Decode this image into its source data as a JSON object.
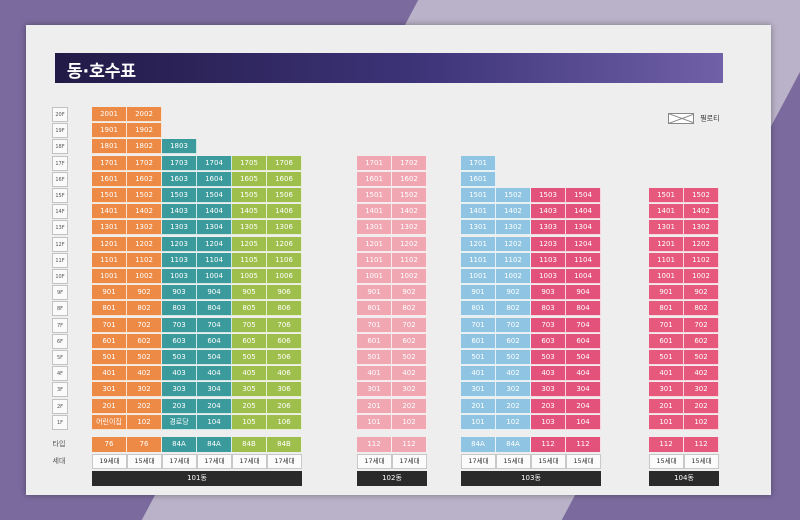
{
  "title": "동·호수표",
  "legend": "필로티",
  "floors": [
    "20F",
    "19F",
    "18F",
    "17F",
    "16F",
    "15F",
    "14F",
    "13F",
    "12F",
    "11F",
    "10F",
    "9F",
    "8F",
    "7F",
    "6F",
    "5F",
    "4F",
    "3F",
    "2F",
    "1F"
  ],
  "row_labels": {
    "type": "타입",
    "households": "세대"
  },
  "colors": {
    "orange": "#ec8a46",
    "teal": "#3b9a9c",
    "olive": "#9fbf4c",
    "pink": "#f0a7b2",
    "lightblue": "#8fc5e2",
    "magenta": "#e2527a",
    "rose": "#e7597c",
    "buildbar": "#2a2a2a"
  },
  "buildings": [
    {
      "name": "101동",
      "columns": [
        {
          "unit": "01",
          "top": 20,
          "first_floor_label": "어린이집",
          "type": "76",
          "count": "19세대",
          "color": "orange"
        },
        {
          "unit": "02",
          "top": 20,
          "type": "76",
          "count": "15세대",
          "color": "orange"
        },
        {
          "unit": "03",
          "top": 18,
          "first_floor_label": "경로당",
          "type": "84A",
          "count": "17세대",
          "color": "teal"
        },
        {
          "unit": "04",
          "top": 17,
          "type": "84A",
          "count": "17세대",
          "color": "teal"
        },
        {
          "unit": "05",
          "top": 17,
          "type": "84B",
          "count": "17세대",
          "color": "olive"
        },
        {
          "unit": "06",
          "top": 17,
          "type": "84B",
          "count": "17세대",
          "color": "olive"
        }
      ]
    },
    {
      "name": "102동",
      "columns": [
        {
          "unit": "01",
          "top": 17,
          "type": "112",
          "count": "17세대",
          "color": "pink"
        },
        {
          "unit": "02",
          "top": 17,
          "type": "112",
          "count": "17세대",
          "color": "pink"
        }
      ]
    },
    {
      "name": "103동",
      "columns": [
        {
          "unit": "01",
          "top": 17,
          "type": "84A",
          "count": "17세대",
          "color": "lightblue"
        },
        {
          "unit": "02",
          "top": 15,
          "type": "84A",
          "count": "15세대",
          "color": "lightblue"
        },
        {
          "unit": "03",
          "top": 15,
          "type": "112",
          "count": "15세대",
          "color": "magenta"
        },
        {
          "unit": "04",
          "top": 15,
          "type": "112",
          "count": "15세대",
          "color": "magenta"
        }
      ]
    },
    {
      "name": "104동",
      "columns": [
        {
          "unit": "01",
          "top": 15,
          "type": "112",
          "count": "15세대",
          "color": "rose"
        },
        {
          "unit": "02",
          "top": 15,
          "type": "112",
          "count": "15세대",
          "color": "rose"
        }
      ]
    }
  ]
}
